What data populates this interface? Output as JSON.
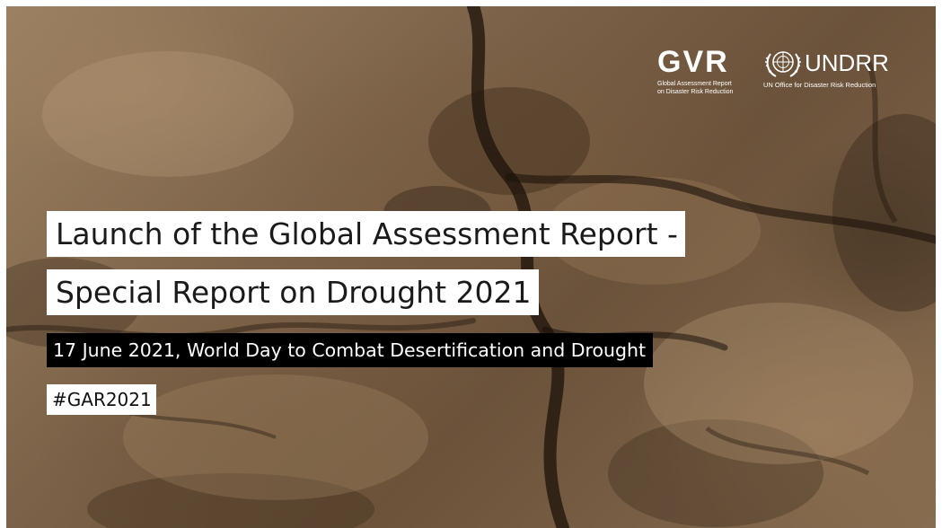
{
  "logos": {
    "gar": {
      "mark": "GVR",
      "subtitle_line1": "Global Assessment Report",
      "subtitle_line2": "on Disaster Risk Reduction"
    },
    "undrr": {
      "mark": "UNDRR",
      "subtitle": "UN Office for Disaster Risk Reduction"
    }
  },
  "title": {
    "line1": "Launch of the Global Assessment Report -",
    "line2": "Special Report on Drought 2021"
  },
  "subtitle": "17 June 2021, World Day to Combat Desertification and Drought",
  "hashtag": "#GAR2021",
  "colors": {
    "soil_dark": "#5a4330",
    "soil_light": "#a88a68",
    "text_box_light": "#ffffff",
    "text_box_dark": "#000000"
  }
}
